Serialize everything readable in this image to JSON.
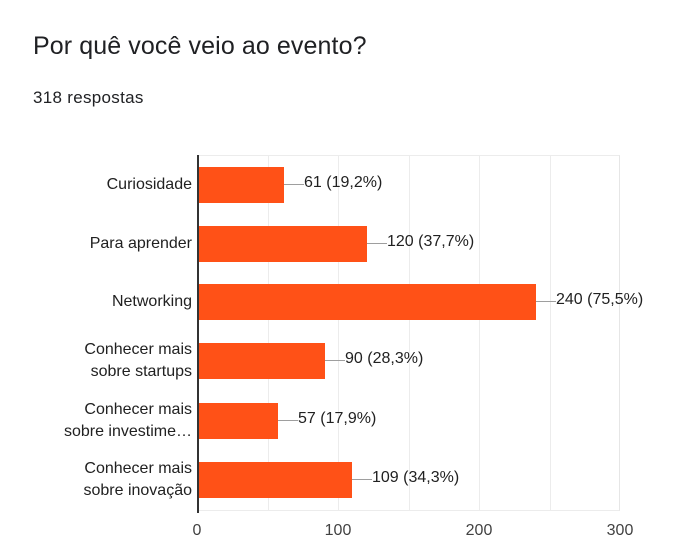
{
  "header": {
    "title": "Por quê você veio ao evento?",
    "subtitle": "318 respostas"
  },
  "colors": {
    "bar": "#ff5117",
    "axis": "#333333",
    "grid": "#ececec",
    "text": "#202124"
  },
  "chart_data": {
    "type": "bar",
    "orientation": "horizontal",
    "title": "Por quê você veio ao evento?",
    "subtitle": "318 respostas",
    "xlabel": "",
    "ylabel": "",
    "xlim": [
      0,
      300
    ],
    "x_ticks": [
      "0",
      "100",
      "200",
      "300"
    ],
    "grid": true,
    "legend": "none",
    "categories": [
      "Curiosidade",
      "Para aprender",
      "Networking",
      "Conhecer mais sobre startups",
      "Conhecer mais sobre investime…",
      "Conhecer mais sobre inovação"
    ],
    "values": [
      61,
      120,
      240,
      90,
      57,
      109
    ],
    "percentages": [
      "19,2%",
      "37,7%",
      "75,5%",
      "28,3%",
      "17,9%",
      "34,3%"
    ],
    "data_labels": [
      "61 (19,2%)",
      "120 (37,7%)",
      "240 (75,5%)",
      "90 (28,3%)",
      "57 (17,9%)",
      "109 (34,3%)"
    ]
  },
  "chart": {
    "rows": [
      {
        "line1": "Curiosidade",
        "line2": "",
        "label": "61 (19,2%)"
      },
      {
        "line1": "Para aprender",
        "line2": "",
        "label": "120 (37,7%)"
      },
      {
        "line1": "Networking",
        "line2": "",
        "label": "240 (75,5%)"
      },
      {
        "line1": "Conhecer mais",
        "line2": "sobre startups",
        "label": "90 (28,3%)"
      },
      {
        "line1": "Conhecer mais",
        "line2": "sobre investime…",
        "label": "57 (17,9%)"
      },
      {
        "line1": "Conhecer mais",
        "line2": "sobre inovação",
        "label": "109 (34,3%)"
      }
    ],
    "ticks": [
      "0",
      "100",
      "200",
      "300"
    ]
  }
}
